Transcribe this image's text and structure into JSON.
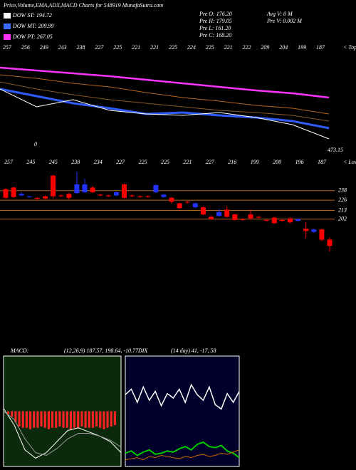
{
  "header": {
    "title": "Price,Volume,EMA,ADX,MACD Charts for 548919 MunafaSutra.com",
    "legend": [
      {
        "label": "DOW ST: 194.72",
        "color": "#ffffff"
      },
      {
        "label": "DOW MT: 209.99",
        "color": "#3a6cff"
      },
      {
        "label": "DOW PT: 267.05",
        "color": "#ff33ff"
      }
    ],
    "stats": [
      "Pre O: 176.20",
      "Pre H: 179.05",
      "Pre L: 161.20",
      "Pre C: 168.20"
    ],
    "volume": [
      "Avg V: 0 M",
      "Pre V: 0.002 M"
    ]
  },
  "chart_data": [
    {
      "type": "line",
      "ylim": [
        150,
        290
      ],
      "top_labels": [
        "257",
        "256",
        "249",
        "243",
        "238",
        "227",
        "225",
        "221",
        "221",
        "225",
        "224",
        "225",
        "221",
        "222",
        "209",
        "204",
        "199",
        "187"
      ],
      "top_note": "< Tops",
      "price_label": "473.15",
      "annotation": "0",
      "series": [
        {
          "color": "#ff33ff",
          "width": 2.5,
          "values": [
            270,
            266,
            262,
            258,
            253,
            248,
            243,
            238,
            234,
            228
          ]
        },
        {
          "color": "#b5651d",
          "width": 1,
          "values": [
            260,
            255,
            248,
            243,
            235,
            228,
            223,
            217,
            213,
            205
          ]
        },
        {
          "color": "#8b5a2b",
          "width": 1,
          "values": [
            250,
            240,
            232,
            225,
            220,
            215,
            210,
            207,
            203,
            195
          ]
        },
        {
          "color": "#2f5bff",
          "width": 3,
          "values": [
            240,
            230,
            220,
            213,
            205,
            207,
            203,
            200,
            195,
            185
          ]
        },
        {
          "color": "#ffffff",
          "width": 1,
          "values": [
            240,
            215,
            225,
            210,
            205,
            203,
            207,
            200,
            190,
            170
          ]
        }
      ]
    },
    {
      "type": "candlestick",
      "ylim": [
        155,
        276.5
      ],
      "yticks": [
        238,
        226,
        213,
        202
      ],
      "grid_color": "#b5651d",
      "up_color": "#2233ff",
      "down_color": "#ff0000",
      "bottom_labels": [
        "257",
        "245",
        "245",
        "238",
        "234",
        "227",
        "225",
        "225",
        "221",
        "227",
        "216",
        "199",
        "200",
        "196",
        "187"
      ],
      "bottom_note": "< Lows",
      "open": [
        240,
        242,
        232,
        230,
        229,
        231,
        257,
        232,
        234,
        235,
        236,
        242,
        233,
        232,
        232,
        246,
        232,
        231,
        231,
        236,
        230,
        229,
        222,
        224,
        217,
        217,
        205,
        206,
        214,
        208,
        202,
        208,
        205,
        201,
        204,
        201,
        203,
        200,
        190,
        186,
        189,
        176.2
      ],
      "high": [
        241,
        243,
        236,
        231,
        230,
        232,
        258,
        233,
        235,
        262,
        253,
        244,
        234,
        233,
        237,
        247,
        233,
        232,
        232,
        246,
        234,
        230,
        223,
        225,
        223,
        218,
        206,
        215,
        218,
        209,
        203,
        214,
        206,
        202,
        205,
        202,
        204,
        203,
        198,
        190,
        190,
        179.05
      ],
      "low": [
        228,
        229,
        231,
        229,
        226,
        227,
        228,
        230,
        227,
        234,
        235,
        235,
        231,
        230,
        231,
        228,
        230,
        229,
        229,
        235,
        229,
        222,
        215,
        222,
        216,
        207,
        201,
        205,
        204,
        200,
        200,
        201,
        203,
        199,
        196,
        199,
        197,
        199,
        178,
        185,
        174,
        161.2
      ],
      "close": [
        229,
        230,
        234,
        231,
        228,
        228,
        231,
        231,
        229,
        246,
        246,
        236,
        232,
        231,
        236,
        229,
        231,
        230,
        230,
        245,
        233,
        224,
        216,
        223,
        222,
        208,
        202,
        211,
        205,
        201,
        201,
        203,
        204,
        200,
        197,
        200,
        198,
        202,
        187,
        189,
        176,
        168.2
      ]
    },
    {
      "type": "macd",
      "title": "MACD:",
      "params": "(12,26,9) 187.57, 198.64, -10.77DIX",
      "ylim": [
        -40,
        40
      ],
      "bar_color": "#ff2222",
      "background": "#0b2a0b",
      "histogram": [
        -2,
        -4,
        -8,
        -11,
        -12,
        -12,
        -13,
        -12,
        -12,
        -11,
        -12,
        -13,
        -12,
        -12,
        -11,
        -12,
        -12,
        -13,
        -12,
        -12,
        -11,
        -12,
        -12,
        -12,
        -11,
        -12,
        -13,
        -12,
        -11,
        -10
      ],
      "series": [
        {
          "color": "#ffffff",
          "width": 1,
          "values": [
            2,
            -10,
            -28,
            -34,
            -30,
            -22,
            -14,
            -12,
            -15,
            -18,
            -22,
            -30
          ]
        },
        {
          "color": "#999999",
          "width": 1,
          "values": [
            0,
            -6,
            -20,
            -30,
            -32,
            -27,
            -20,
            -16,
            -16,
            -18,
            -21,
            -26
          ]
        }
      ]
    },
    {
      "type": "line",
      "title": "(14 day) 41, -17, 58",
      "ylim": [
        0,
        100
      ],
      "background": "#00002a",
      "series": [
        {
          "color": "#ffffff",
          "width": 1.5,
          "values": [
            65,
            70,
            58,
            72,
            60,
            68,
            55,
            66,
            62,
            70,
            58,
            74,
            65,
            60,
            72,
            56,
            52,
            66,
            58,
            68
          ]
        },
        {
          "color": "#00cc00",
          "width": 2,
          "values": [
            12,
            14,
            10,
            13,
            15,
            11,
            12,
            14,
            13,
            16,
            18,
            15,
            20,
            22,
            18,
            17,
            19,
            14,
            12,
            8
          ]
        },
        {
          "color": "#cc6600",
          "width": 1,
          "values": [
            6,
            7,
            8,
            6,
            9,
            8,
            10,
            9,
            8,
            7,
            9,
            8,
            10,
            11,
            9,
            10,
            12,
            11,
            13,
            15
          ]
        }
      ]
    }
  ]
}
